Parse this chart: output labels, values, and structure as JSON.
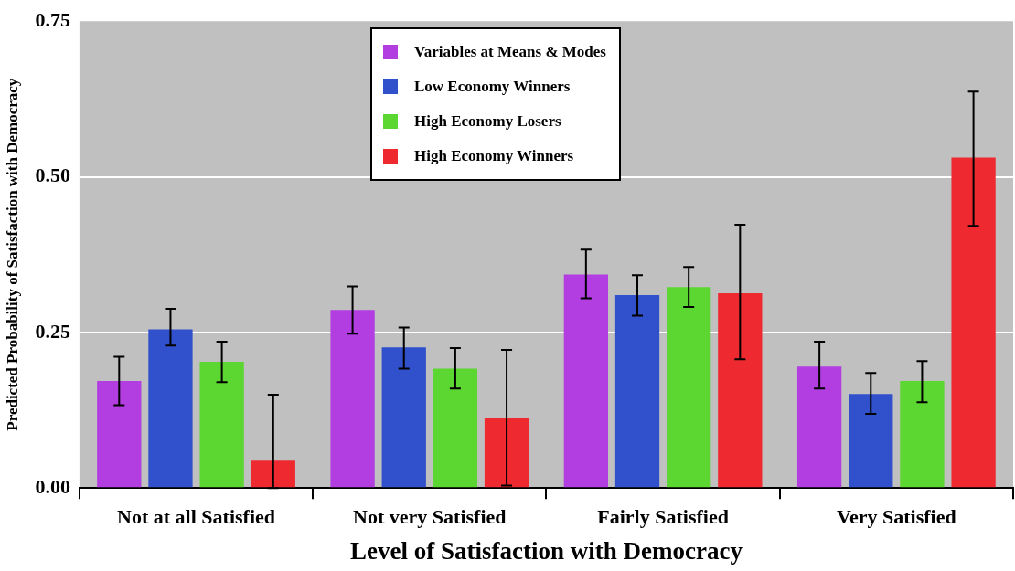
{
  "chart_data": {
    "type": "bar",
    "xlabel": "Level of Satisfaction with Democracy",
    "ylabel": "Predicted Probability of Satisfaction with Democracy",
    "categories": [
      "Not at all Satisfied",
      "Not very Satisfied",
      "Fairly Satisfied",
      "Very Satisfied"
    ],
    "series": [
      {
        "name": "Variables at Means & Modes",
        "color": "#b23de0",
        "values": [
          0.172,
          0.286,
          0.343,
          0.195
        ],
        "errors": [
          [
            0.133,
            0.211
          ],
          [
            0.248,
            0.324
          ],
          [
            0.305,
            0.383
          ],
          [
            0.16,
            0.235
          ]
        ]
      },
      {
        "name": "Low Economy Winners",
        "color": "#3050cc",
        "values": [
          0.255,
          0.226,
          0.31,
          0.151
        ],
        "errors": [
          [
            0.229,
            0.288
          ],
          [
            0.192,
            0.258
          ],
          [
            0.277,
            0.342
          ],
          [
            0.119,
            0.185
          ]
        ]
      },
      {
        "name": "High Economy Losers",
        "color": "#5cd630",
        "values": [
          0.203,
          0.192,
          0.323,
          0.172
        ],
        "errors": [
          [
            0.17,
            0.235
          ],
          [
            0.16,
            0.225
          ],
          [
            0.291,
            0.355
          ],
          [
            0.138,
            0.204
          ]
        ]
      },
      {
        "name": "High Economy Winners",
        "color": "#ee2a30",
        "values": [
          0.044,
          0.112,
          0.313,
          0.531
        ],
        "errors": [
          [
            0,
            0.15
          ],
          [
            0.004,
            0.222
          ],
          [
            0.207,
            0.423
          ],
          [
            0.421,
            0.637
          ]
        ]
      }
    ],
    "ylim": [
      0,
      0.75
    ],
    "yticks": [
      {
        "value": 0,
        "label": "0.00"
      },
      {
        "value": 0.25,
        "label": "0.25"
      },
      {
        "value": 0.5,
        "label": "0.50"
      },
      {
        "value": 0.75,
        "label": "0.75"
      }
    ],
    "grid": "y",
    "legend": "top"
  }
}
